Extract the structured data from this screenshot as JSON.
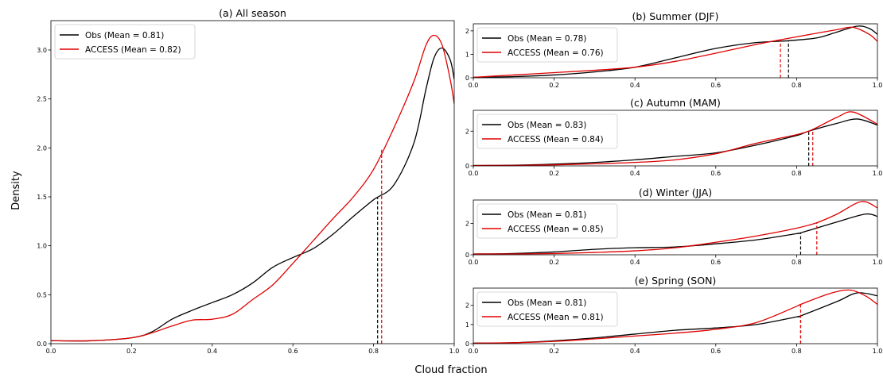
{
  "figure": {
    "xlabel": "Cloud fraction",
    "ylabel": "Density"
  },
  "chart_data": [
    {
      "type": "line",
      "title": "(a) All season",
      "xlim": [
        0,
        1
      ],
      "ylim": [
        0,
        3.3
      ],
      "xticks": [
        "0.0",
        "0.2",
        "0.4",
        "0.6",
        "0.8",
        "1.0"
      ],
      "yticks": [
        "0.0",
        "0.5",
        "1.0",
        "1.5",
        "2.0",
        "2.5",
        "3.0"
      ],
      "legend_position": "upper-left",
      "series": [
        {
          "name": "Obs (Mean = 0.81)",
          "color": "#000000",
          "mean": 0.81,
          "mean_density": 1.5,
          "x": [
            0,
            0.1,
            0.2,
            0.25,
            0.3,
            0.35,
            0.4,
            0.45,
            0.5,
            0.55,
            0.6,
            0.65,
            0.7,
            0.75,
            0.8,
            0.85,
            0.9,
            0.93,
            0.95,
            0.97,
            0.99,
            1.0
          ],
          "y": [
            0.03,
            0.03,
            0.06,
            0.12,
            0.25,
            0.34,
            0.42,
            0.5,
            0.62,
            0.78,
            0.88,
            0.97,
            1.12,
            1.3,
            1.47,
            1.62,
            2.05,
            2.6,
            2.92,
            3.02,
            2.9,
            2.7
          ]
        },
        {
          "name": "ACCESS (Mean = 0.82)",
          "color": "#e00000",
          "mean": 0.82,
          "mean_density": 1.98,
          "x": [
            0,
            0.1,
            0.2,
            0.25,
            0.3,
            0.35,
            0.4,
            0.45,
            0.5,
            0.55,
            0.6,
            0.65,
            0.7,
            0.75,
            0.8,
            0.85,
            0.9,
            0.93,
            0.95,
            0.97,
            0.99,
            1.0
          ],
          "y": [
            0.03,
            0.03,
            0.06,
            0.11,
            0.18,
            0.24,
            0.25,
            0.3,
            0.45,
            0.6,
            0.82,
            1.05,
            1.28,
            1.5,
            1.78,
            2.2,
            2.68,
            3.05,
            3.15,
            3.05,
            2.7,
            2.45
          ]
        }
      ]
    },
    {
      "type": "line",
      "title": "(b) Summer (DJF)",
      "xlim": [
        0,
        1
      ],
      "ylim": [
        0,
        2.3
      ],
      "xticks": [
        "0.0",
        "0.2",
        "0.4",
        "0.6",
        "0.8",
        "1.0"
      ],
      "yticks": [
        "0",
        "1",
        "2"
      ],
      "legend_position": "upper-left",
      "series": [
        {
          "name": "Obs (Mean = 0.78)",
          "color": "#000000",
          "mean": 0.78,
          "mean_density": 1.58,
          "x": [
            0,
            0.1,
            0.2,
            0.3,
            0.4,
            0.5,
            0.6,
            0.7,
            0.78,
            0.85,
            0.9,
            0.95,
            0.98,
            1.0
          ],
          "y": [
            0.02,
            0.05,
            0.12,
            0.25,
            0.45,
            0.85,
            1.25,
            1.5,
            1.58,
            1.7,
            1.95,
            2.2,
            2.1,
            1.85
          ]
        },
        {
          "name": "ACCESS (Mean = 0.76)",
          "color": "#e00000",
          "mean": 0.76,
          "mean_density": 1.62,
          "x": [
            0,
            0.1,
            0.2,
            0.3,
            0.4,
            0.5,
            0.6,
            0.7,
            0.76,
            0.85,
            0.9,
            0.94,
            0.98,
            1.0
          ],
          "y": [
            0.02,
            0.12,
            0.22,
            0.32,
            0.45,
            0.7,
            1.05,
            1.42,
            1.62,
            1.9,
            2.05,
            2.15,
            1.85,
            1.55
          ]
        }
      ]
    },
    {
      "type": "line",
      "title": "(c) Autumn (MAM)",
      "xlim": [
        0,
        1
      ],
      "ylim": [
        0,
        3.2
      ],
      "xticks": [
        "0.0",
        "0.2",
        "0.4",
        "0.6",
        "0.8",
        "1.0"
      ],
      "yticks": [
        "0",
        "2"
      ],
      "legend_position": "upper-left",
      "series": [
        {
          "name": "Obs (Mean = 0.83)",
          "color": "#000000",
          "mean": 0.83,
          "mean_density": 2.0,
          "x": [
            0,
            0.1,
            0.2,
            0.3,
            0.4,
            0.5,
            0.6,
            0.7,
            0.8,
            0.83,
            0.9,
            0.95,
            1.0
          ],
          "y": [
            0.02,
            0.04,
            0.1,
            0.2,
            0.35,
            0.55,
            0.75,
            1.2,
            1.75,
            2.0,
            2.45,
            2.7,
            2.35
          ]
        },
        {
          "name": "ACCESS (Mean = 0.84)",
          "color": "#e00000",
          "mean": 0.84,
          "mean_density": 2.1,
          "x": [
            0,
            0.1,
            0.2,
            0.3,
            0.4,
            0.5,
            0.6,
            0.7,
            0.8,
            0.84,
            0.9,
            0.94,
            1.0
          ],
          "y": [
            0.02,
            0.03,
            0.06,
            0.12,
            0.2,
            0.35,
            0.7,
            1.3,
            1.8,
            2.1,
            2.8,
            3.1,
            2.4
          ]
        }
      ]
    },
    {
      "type": "line",
      "title": "(d) Winter (JJA)",
      "xlim": [
        0,
        1
      ],
      "ylim": [
        0,
        3.5
      ],
      "xticks": [
        "0.0",
        "0.2",
        "0.4",
        "0.6",
        "0.8",
        "1.0"
      ],
      "yticks": [
        "0",
        "2"
      ],
      "legend_position": "upper-left",
      "series": [
        {
          "name": "Obs (Mean = 0.81)",
          "color": "#000000",
          "mean": 0.81,
          "mean_density": 1.4,
          "x": [
            0,
            0.1,
            0.2,
            0.3,
            0.4,
            0.5,
            0.6,
            0.7,
            0.8,
            0.81,
            0.9,
            0.97,
            1.0
          ],
          "y": [
            0.05,
            0.08,
            0.18,
            0.35,
            0.45,
            0.5,
            0.7,
            0.95,
            1.35,
            1.4,
            2.1,
            2.6,
            2.45
          ]
        },
        {
          "name": "ACCESS (Mean = 0.85)",
          "color": "#e00000",
          "mean": 0.85,
          "mean_density": 2.05,
          "x": [
            0,
            0.1,
            0.2,
            0.3,
            0.4,
            0.5,
            0.6,
            0.7,
            0.8,
            0.85,
            0.9,
            0.96,
            1.0
          ],
          "y": [
            0.05,
            0.05,
            0.08,
            0.15,
            0.25,
            0.45,
            0.8,
            1.2,
            1.7,
            2.05,
            2.6,
            3.4,
            3.0
          ]
        }
      ]
    },
    {
      "type": "line",
      "title": "(e) Spring (SON)",
      "xlim": [
        0,
        1
      ],
      "ylim": [
        0,
        2.9
      ],
      "xticks": [
        "0.0",
        "0.2",
        "0.4",
        "0.6",
        "0.8",
        "1.0"
      ],
      "yticks": [
        "0",
        "1",
        "2"
      ],
      "legend_position": "upper-left",
      "series": [
        {
          "name": "Obs (Mean = 0.81)",
          "color": "#000000",
          "mean": 0.81,
          "mean_density": 1.45,
          "x": [
            0,
            0.1,
            0.2,
            0.3,
            0.4,
            0.5,
            0.6,
            0.7,
            0.8,
            0.81,
            0.9,
            0.95,
            1.0
          ],
          "y": [
            0.03,
            0.05,
            0.15,
            0.3,
            0.5,
            0.7,
            0.82,
            1.0,
            1.4,
            1.45,
            2.2,
            2.65,
            2.5
          ]
        },
        {
          "name": "ACCESS (Mean = 0.81)",
          "color": "#e00000",
          "mean": 0.81,
          "mean_density": 2.05,
          "x": [
            0,
            0.1,
            0.2,
            0.3,
            0.4,
            0.5,
            0.6,
            0.7,
            0.8,
            0.81,
            0.88,
            0.93,
            0.97,
            1.0
          ],
          "y": [
            0.03,
            0.05,
            0.12,
            0.25,
            0.4,
            0.55,
            0.75,
            1.1,
            1.95,
            2.05,
            2.6,
            2.8,
            2.5,
            2.05
          ]
        }
      ]
    }
  ]
}
